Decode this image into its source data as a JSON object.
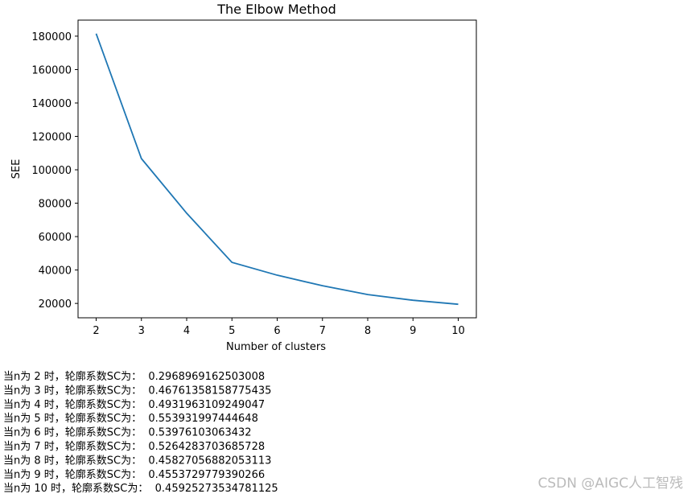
{
  "chart_data": {
    "type": "line",
    "title": "The Elbow Method",
    "x_label": "Number of clusters",
    "y_label": "SEE",
    "x": [
      2,
      3,
      4,
      5,
      6,
      7,
      8,
      9,
      10
    ],
    "series": [
      {
        "color": "#1f77b4",
        "values": [
          181500,
          106700,
          74000,
          44600,
          36900,
          30600,
          25300,
          21900,
          19500
        ]
      }
    ],
    "xlim": [
      1.6,
      10.4
    ],
    "xticks": [
      2,
      3,
      4,
      5,
      6,
      7,
      8,
      9,
      10
    ],
    "ylim": [
      11400,
      189600
    ],
    "yticks": [
      20000,
      40000,
      60000,
      80000,
      100000,
      120000,
      140000,
      160000,
      180000
    ]
  },
  "output": {
    "lines": [
      "当n为 2 时，轮廓系数SC为：  0.2968969162503008",
      "当n为 3 时，轮廓系数SC为：  0.46761358158775435",
      "当n为 4 时，轮廓系数SC为：  0.4931963109249047",
      "当n为 5 时，轮廓系数SC为：  0.553931997444648",
      "当n为 6 时，轮廓系数SC为：  0.53976103063432",
      "当n为 7 时，轮廓系数SC为：  0.5264283703685728",
      "当n为 8 时，轮廓系数SC为：  0.45827056882053113",
      "当n为 9 时，轮廓系数SC为：  0.4553729779390266",
      "当n为 10 时，轮廓系数SC为：  0.45925273534781125"
    ],
    "watermark": "CSDN @AIGC人工智残"
  }
}
